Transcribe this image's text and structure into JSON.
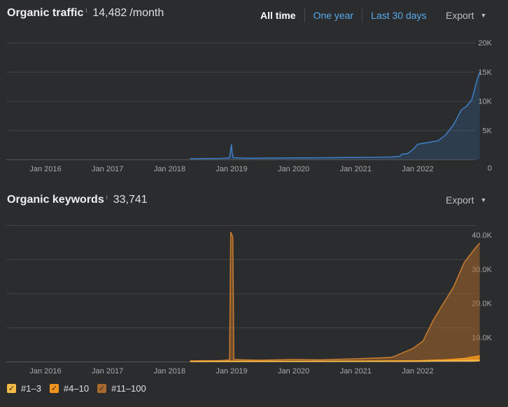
{
  "traffic": {
    "title": "Organic traffic",
    "info_mark": "i",
    "value": "14,482",
    "unit": "/month",
    "tabs": [
      "All time",
      "One year",
      "Last 30 days"
    ],
    "export_label": "Export",
    "chart_data": {
      "type": "area",
      "x_ticks": [
        "Jan 2016",
        "Jan 2017",
        "Jan 2018",
        "Jan 2019",
        "Jan 2020",
        "Jan 2021",
        "Jan 2022"
      ],
      "y_ticks": [
        "20K",
        "15K",
        "10K",
        "5K",
        "0"
      ],
      "ylim": [
        0,
        20000
      ],
      "grid": true,
      "color": "#3d7cc0",
      "series": [
        {
          "values": [
            [
              "2018-05-01",
              120
            ],
            [
              "2018-08-01",
              150
            ],
            [
              "2018-11-01",
              180
            ],
            [
              "2018-12-20",
              260
            ],
            [
              "2018-12-31",
              2600
            ],
            [
              "2019-01-04",
              1200
            ],
            [
              "2019-01-10",
              300
            ],
            [
              "2019-04-01",
              200
            ],
            [
              "2019-08-01",
              230
            ],
            [
              "2020-01-01",
              260
            ],
            [
              "2020-06-01",
              280
            ],
            [
              "2020-12-01",
              330
            ],
            [
              "2021-04-01",
              360
            ],
            [
              "2021-08-01",
              420
            ],
            [
              "2021-09-15",
              520
            ],
            [
              "2021-10-01",
              900
            ],
            [
              "2021-11-01",
              1000
            ],
            [
              "2021-12-01",
              1600
            ],
            [
              "2022-01-01",
              2600
            ],
            [
              "2022-03-01",
              2900
            ],
            [
              "2022-05-01",
              3200
            ],
            [
              "2022-06-15",
              4200
            ],
            [
              "2022-08-01",
              6000
            ],
            [
              "2022-09-15",
              8500
            ],
            [
              "2022-10-15",
              9100
            ],
            [
              "2022-11-15",
              10200
            ],
            [
              "2022-12-15",
              13500
            ],
            [
              "2023-01-01",
              15000
            ]
          ]
        }
      ]
    }
  },
  "keywords": {
    "title": "Organic keywords",
    "info_mark": "i",
    "value": "33,741",
    "export_label": "Export",
    "chart_data": {
      "type": "area",
      "x_ticks": [
        "Jan 2016",
        "Jan 2017",
        "Jan 2018",
        "Jan 2019",
        "Jan 2020",
        "Jan 2021",
        "Jan 2022"
      ],
      "y_ticks": [
        "40.0K",
        "30.0K",
        "20.0K",
        "10.0K"
      ],
      "ylim": [
        0,
        40000
      ],
      "grid": true,
      "series": [
        {
          "name": "#11–100",
          "color": "#a86a2c",
          "values": [
            [
              "2018-05-01",
              200
            ],
            [
              "2018-11-01",
              300
            ],
            [
              "2018-12-20",
              500
            ],
            [
              "2018-12-27",
              38000
            ],
            [
              "2019-01-08",
              36500
            ],
            [
              "2019-01-14",
              600
            ],
            [
              "2019-06-01",
              400
            ],
            [
              "2020-01-01",
              600
            ],
            [
              "2020-06-01",
              500
            ],
            [
              "2021-01-01",
              800
            ],
            [
              "2021-08-01",
              1200
            ],
            [
              "2021-10-01",
              2500
            ],
            [
              "2021-12-01",
              3800
            ],
            [
              "2022-02-01",
              6000
            ],
            [
              "2022-04-01",
              12000
            ],
            [
              "2022-06-01",
              17000
            ],
            [
              "2022-08-01",
              22000
            ],
            [
              "2022-10-01",
              29000
            ],
            [
              "2022-12-01",
              33000
            ],
            [
              "2023-01-01",
              34800
            ]
          ]
        },
        {
          "name": "#4–10",
          "color": "#f0941e",
          "values": [
            [
              "2018-05-01",
              60
            ],
            [
              "2019-01-01",
              150
            ],
            [
              "2020-01-01",
              100
            ],
            [
              "2021-01-01",
              150
            ],
            [
              "2022-01-01",
              250
            ],
            [
              "2022-06-01",
              500
            ],
            [
              "2022-10-01",
              900
            ],
            [
              "2023-01-01",
              1700
            ]
          ]
        },
        {
          "name": "#1–3",
          "color": "#f5b945",
          "values": [
            [
              "2018-05-01",
              20
            ],
            [
              "2020-01-01",
              40
            ],
            [
              "2022-01-01",
              80
            ],
            [
              "2023-01-01",
              400
            ]
          ]
        }
      ],
      "legend": [
        "#1–3",
        "#4–10",
        "#11–100"
      ]
    }
  }
}
